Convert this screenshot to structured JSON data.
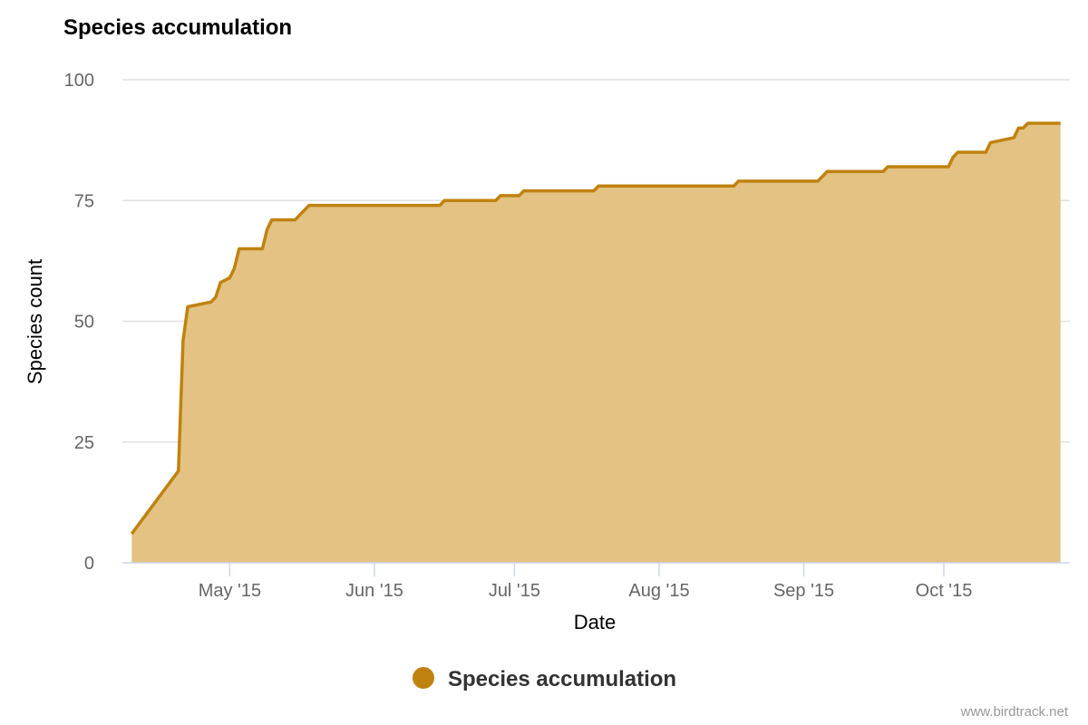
{
  "chart_data": {
    "type": "area",
    "title": "Species accumulation",
    "xlabel": "Date",
    "ylabel": "Species count",
    "ylim": [
      0,
      100
    ],
    "yticks": [
      0,
      25,
      50,
      75,
      100
    ],
    "xlim": [
      "2015-04-08",
      "2015-10-28"
    ],
    "xticks": [
      {
        "date": "2015-05-01",
        "label": "May '15"
      },
      {
        "date": "2015-06-01",
        "label": "Jun '15"
      },
      {
        "date": "2015-07-01",
        "label": "Jul '15"
      },
      {
        "date": "2015-08-01",
        "label": "Aug '15"
      },
      {
        "date": "2015-09-01",
        "label": "Sep '15"
      },
      {
        "date": "2015-10-01",
        "label": "Oct '15"
      }
    ],
    "grid": true,
    "legend_position": "bottom-center",
    "series": [
      {
        "name": "Species accumulation",
        "color": "#c0820f",
        "fill": "#e3c283",
        "points": [
          [
            "2015-04-10",
            6
          ],
          [
            "2015-04-20",
            19
          ],
          [
            "2015-04-21",
            46
          ],
          [
            "2015-04-22",
            53
          ],
          [
            "2015-04-27",
            54
          ],
          [
            "2015-04-28",
            55
          ],
          [
            "2015-04-29",
            58
          ],
          [
            "2015-05-01",
            59
          ],
          [
            "2015-05-02",
            61
          ],
          [
            "2015-05-03",
            65
          ],
          [
            "2015-05-08",
            65
          ],
          [
            "2015-05-09",
            69
          ],
          [
            "2015-05-10",
            71
          ],
          [
            "2015-05-15",
            71
          ],
          [
            "2015-05-18",
            74
          ],
          [
            "2015-06-15",
            74
          ],
          [
            "2015-06-16",
            75
          ],
          [
            "2015-06-27",
            75
          ],
          [
            "2015-06-28",
            76
          ],
          [
            "2015-07-02",
            76
          ],
          [
            "2015-07-03",
            77
          ],
          [
            "2015-07-18",
            77
          ],
          [
            "2015-07-19",
            78
          ],
          [
            "2015-08-17",
            78
          ],
          [
            "2015-08-18",
            79
          ],
          [
            "2015-09-04",
            79
          ],
          [
            "2015-09-06",
            81
          ],
          [
            "2015-09-18",
            81
          ],
          [
            "2015-09-19",
            82
          ],
          [
            "2015-10-02",
            82
          ],
          [
            "2015-10-03",
            84
          ],
          [
            "2015-10-04",
            85
          ],
          [
            "2015-10-10",
            85
          ],
          [
            "2015-10-11",
            87
          ],
          [
            "2015-10-16",
            88
          ],
          [
            "2015-10-17",
            90
          ],
          [
            "2015-10-18",
            90
          ],
          [
            "2015-10-19",
            91
          ],
          [
            "2015-10-26",
            91
          ]
        ]
      }
    ]
  },
  "credit": "www.birdtrack.net"
}
